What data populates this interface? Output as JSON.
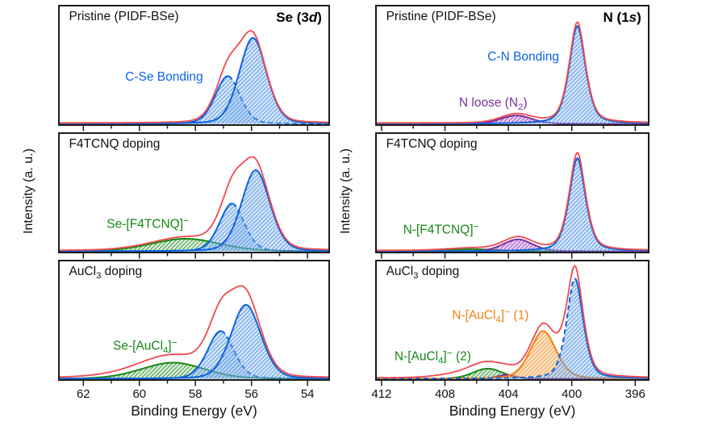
{
  "colors": {
    "axis": "#1c1c1c",
    "text": "#111111",
    "envelope": "#f2494e",
    "blue": {
      "stroke": "#0c62df",
      "hatch_bg": "rgba(120,170,235,0.28)",
      "hatch_line": "#5f9ee9",
      "label": "#0b64e8"
    },
    "green": {
      "stroke": "#168716",
      "hatch_bg": "rgba(120,190,110,0.25)",
      "hatch_line": "#4e9e4e",
      "label": "#168716"
    },
    "purple": {
      "stroke": "#7c2fa0",
      "hatch_bg": "rgba(180,110,210,0.30)",
      "hatch_line": "#a85cc9",
      "label": "#7c2fa0"
    },
    "orange": {
      "stroke": "#f08312",
      "hatch_bg": "rgba(247,170,80,0.30)",
      "hatch_line": "#f3a24a",
      "label": "#f08312"
    }
  },
  "chart_data": {
    "type": "area",
    "description": "XPS core-level spectra of PIDF-BSe: Se 3d (left) and N 1s (right) for pristine, F4TCNQ-doped and AuCl3-doped films. Hatched areas are fitted components, red line is the fit envelope. Binding-energy axes are reversed. Intensity axis is unlabeled (arbitrary units). Peak parameters: center (eV), sigma (eV), amplitude (fraction of panel height).",
    "columns": [
      {
        "id": "se3d",
        "corner_label": [
          {
            "t": "Se (3"
          },
          {
            "i": "d"
          },
          {
            "t": ")"
          }
        ],
        "ylabel": "Intensity (a. u.)",
        "xlabel": "Binding Energy (eV)",
        "x_range": [
          62.9,
          53.2
        ],
        "major_ticks": [
          62,
          60,
          58,
          56,
          54
        ],
        "minor_step": 1,
        "panels": [
          {
            "label": [
              {
                "t": "Pristine (PIDF-BSe)"
              }
            ],
            "envelope": {
              "scale": 0.98,
              "extra": []
            },
            "components": [
              {
                "id": "c-se-3d32",
                "color": "blue",
                "center": 56.85,
                "sigma": 0.45,
                "amplitude": 0.4,
                "mix": 0.22,
                "dash": "right"
              },
              {
                "id": "c-se-3d52",
                "color": "blue",
                "center": 55.95,
                "sigma": 0.5,
                "amplitude": 0.72,
                "mix": 0.22
              }
            ],
            "annotations": [
              {
                "segments": [
                  {
                    "t": "C-Se Bonding"
                  }
                ],
                "color": "blue",
                "x_pct": 39,
                "y_pct": 60
              }
            ]
          },
          {
            "label": [
              {
                "t": "F4TCNQ doping"
              }
            ],
            "envelope": {
              "scale": 1.0,
              "extra": []
            },
            "components": [
              {
                "id": "se-f4tcnq",
                "color": "green",
                "center": 58.35,
                "sigma": 1.25,
                "amplitude": 0.105,
                "mix": 0.15
              },
              {
                "id": "c-se-3d32",
                "color": "blue",
                "center": 56.7,
                "sigma": 0.45,
                "amplitude": 0.4,
                "mix": 0.22,
                "dash": "right"
              },
              {
                "id": "c-se-3d52",
                "color": "blue",
                "center": 55.85,
                "sigma": 0.52,
                "amplitude": 0.68,
                "mix": 0.22
              }
            ],
            "annotations": [
              {
                "segments": [
                  {
                    "t": "Se-[F4TCNQ]"
                  },
                  {
                    "sup": "−"
                  }
                ],
                "color": "green",
                "x_pct": 33,
                "y_pct": 75
              }
            ]
          },
          {
            "label": [
              {
                "t": "AuCl"
              },
              {
                "sub": "3"
              },
              {
                "t": " doping"
              }
            ],
            "envelope": {
              "scale": 1.05,
              "extra": [
                {
                  "center": 59.3,
                  "sigma": 1.6,
                  "amplitude": 0.045,
                  "mix": 0.15
                }
              ]
            },
            "components": [
              {
                "id": "se-aucl4",
                "color": "green",
                "center": 58.8,
                "sigma": 1.15,
                "amplitude": 0.135,
                "mix": 0.15
              },
              {
                "id": "c-se-3d32",
                "color": "blue",
                "center": 57.1,
                "sigma": 0.48,
                "amplitude": 0.4,
                "mix": 0.22,
                "dash": "right"
              },
              {
                "id": "c-se-3d52",
                "color": "blue",
                "center": 56.2,
                "sigma": 0.55,
                "amplitude": 0.62,
                "mix": 0.22
              }
            ],
            "annotations": [
              {
                "segments": [
                  {
                    "t": "Se-[AuCl"
                  },
                  {
                    "sub": "4"
                  },
                  {
                    "t": "]"
                  },
                  {
                    "sup": "−"
                  }
                ],
                "color": "green",
                "x_pct": 32,
                "y_pct": 71
              }
            ]
          }
        ]
      },
      {
        "id": "n1s",
        "corner_label": [
          {
            "t": "N (1"
          },
          {
            "i": "s"
          },
          {
            "t": ")"
          }
        ],
        "ylabel": "Intensity (a. u.)",
        "xlabel": "Binding Energy (eV)",
        "x_range": [
          412.4,
          395.1
        ],
        "major_ticks": [
          412,
          408,
          404,
          400,
          396
        ],
        "minor_step": 2,
        "panels": [
          {
            "label": [
              {
                "t": "Pristine (PIDF-BSe)"
              }
            ],
            "envelope": {
              "scale": 1.03,
              "extra": []
            },
            "components": [
              {
                "id": "n-loose-n2",
                "color": "purple",
                "center": 403.5,
                "sigma": 1.0,
                "amplitude": 0.07,
                "mix": 0.2
              },
              {
                "id": "c-n-bonding",
                "color": "blue",
                "center": 399.65,
                "sigma": 0.55,
                "amplitude": 0.82,
                "mix": 0.5
              }
            ],
            "annotations": [
              {
                "segments": [
                  {
                    "t": "C-N Bonding"
                  }
                ],
                "color": "blue",
                "x_pct": 54,
                "y_pct": 43
              },
              {
                "segments": [
                  {
                    "t": "N loose (N"
                  },
                  {
                    "sub": "2"
                  },
                  {
                    "t": ")"
                  }
                ],
                "color": "purple",
                "x_pct": 43,
                "y_pct": 82
              }
            ]
          },
          {
            "label": [
              {
                "t": "F4TCNQ doping"
              }
            ],
            "envelope": {
              "scale": 1.05,
              "extra": []
            },
            "components": [
              {
                "id": "n-f4tcnq",
                "color": "green",
                "center": 406.3,
                "sigma": 1.6,
                "amplitude": 0.018,
                "mix": 0.15
              },
              {
                "id": "n-loose-n2",
                "color": "purple",
                "center": 403.4,
                "sigma": 0.95,
                "amplitude": 0.1,
                "mix": 0.2
              },
              {
                "id": "c-n-bonding",
                "color": "blue",
                "center": 399.65,
                "sigma": 0.55,
                "amplitude": 0.78,
                "mix": 0.5
              }
            ],
            "annotations": [
              {
                "segments": [
                  {
                    "t": "N-[F4TCNQ]"
                  },
                  {
                    "sup": "−"
                  }
                ],
                "color": "green",
                "x_pct": 24,
                "y_pct": 80
              }
            ]
          },
          {
            "label": [
              {
                "t": "AuCl"
              },
              {
                "sub": "3"
              },
              {
                "t": " doping"
              }
            ],
            "envelope": {
              "scale": 1.07,
              "extra": [
                {
                  "center": 406.5,
                  "sigma": 1.5,
                  "amplitude": 0.045,
                  "mix": 0.15
                }
              ]
            },
            "components": [
              {
                "id": "n-aucl4-2",
                "color": "green",
                "center": 405.3,
                "sigma": 0.95,
                "amplitude": 0.085,
                "mix": 0.15
              },
              {
                "id": "n-loose-n2",
                "color": "purple",
                "center": 404.1,
                "sigma": 0.6,
                "amplitude": 0.032,
                "mix": 0.2
              },
              {
                "id": "n-aucl4-1",
                "color": "orange",
                "center": 401.8,
                "sigma": 0.85,
                "amplitude": 0.4,
                "mix": 0.3
              },
              {
                "id": "c-n-bonding",
                "color": "blue",
                "center": 399.8,
                "sigma": 0.55,
                "amplitude": 0.84,
                "mix": 0.45,
                "dash": "left"
              }
            ],
            "annotations": [
              {
                "segments": [
                  {
                    "t": "N-[AuCl"
                  },
                  {
                    "sub": "4"
                  },
                  {
                    "t": "]"
                  },
                  {
                    "sup": "−"
                  },
                  {
                    "t": " (1)"
                  }
                ],
                "color": "orange",
                "x_pct": 42,
                "y_pct": 46
              },
              {
                "segments": [
                  {
                    "t": "N-[AuCl"
                  },
                  {
                    "sub": "4"
                  },
                  {
                    "t": "]"
                  },
                  {
                    "sup": "−"
                  },
                  {
                    "t": " (2)"
                  }
                ],
                "color": "green",
                "x_pct": 21,
                "y_pct": 80
              }
            ]
          }
        ]
      }
    ]
  }
}
